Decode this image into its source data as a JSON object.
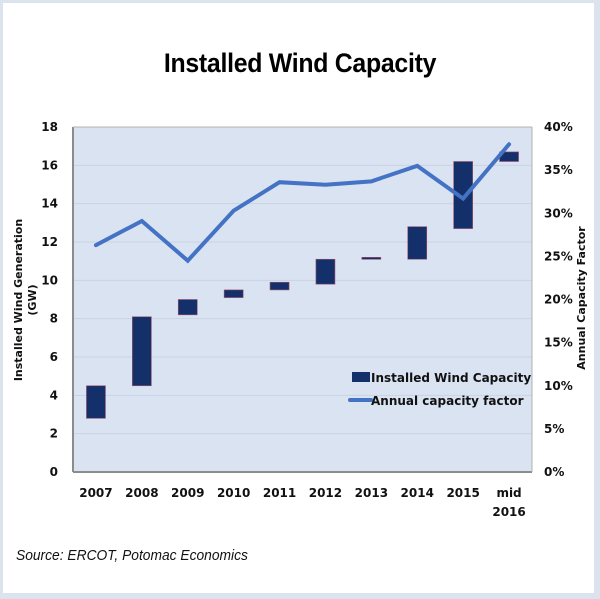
{
  "chart_data": {
    "type": "bar",
    "subtype": "floating-bar-with-line",
    "title": "Installed Wind Capacity",
    "source": "Source: ERCOT, Potomac Economics",
    "categories": [
      "2007",
      "2008",
      "2009",
      "2010",
      "2011",
      "2012",
      "2013",
      "2014",
      "2015",
      "mid 2016"
    ],
    "category_labels": [
      [
        "2007"
      ],
      [
        "2008"
      ],
      [
        "2009"
      ],
      [
        "2010"
      ],
      [
        "2011"
      ],
      [
        "2012"
      ],
      [
        "2013"
      ],
      [
        "2014"
      ],
      [
        "2015"
      ],
      [
        "mid",
        "2016"
      ]
    ],
    "ylabel_left": [
      "Installed Wind Generation",
      "(GW)"
    ],
    "ylabel_right": "Annual Capacity Factor",
    "ylim_left": [
      0,
      18
    ],
    "yticks_left": [
      "0",
      "2",
      "4",
      "6",
      "8",
      "10",
      "12",
      "14",
      "16",
      "18"
    ],
    "ylim_right": [
      0,
      40
    ],
    "yticks_right": [
      "0%",
      "5%",
      "10%",
      "15%",
      "20%",
      "25%",
      "30%",
      "35%",
      "40%"
    ],
    "grid": true,
    "legend_position": "lower-right",
    "series": [
      {
        "name": "Installed Wind Capacity",
        "type": "floating-bar",
        "axis": "left",
        "color": "#13306a",
        "low": [
          2.8,
          4.5,
          8.2,
          9.1,
          9.5,
          9.8,
          11.1,
          11.1,
          12.7,
          16.2
        ],
        "high": [
          4.5,
          8.1,
          9.0,
          9.5,
          9.9,
          11.1,
          11.2,
          12.8,
          16.2,
          16.7
        ]
      },
      {
        "name": "Annual capacity factor",
        "type": "line",
        "axis": "right",
        "color": "#4472c4",
        "values": [
          26.3,
          29.1,
          24.5,
          30.3,
          33.6,
          33.3,
          33.7,
          35.5,
          31.7,
          38.0
        ]
      }
    ]
  }
}
